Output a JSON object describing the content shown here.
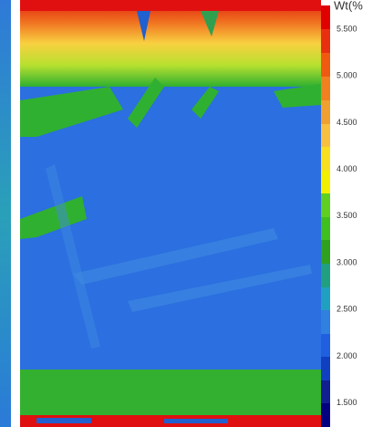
{
  "colorbar": {
    "title": "Wt(%",
    "ticks": [
      {
        "value": 5.5,
        "label": "5.500"
      },
      {
        "value": 5.0,
        "label": "5.000"
      },
      {
        "value": 4.5,
        "label": "4.500"
      },
      {
        "value": 4.0,
        "label": "4.000"
      },
      {
        "value": 3.5,
        "label": "3.500"
      },
      {
        "value": 3.0,
        "label": "3.000"
      },
      {
        "value": 2.5,
        "label": "2.500"
      },
      {
        "value": 2.0,
        "label": "2.000"
      },
      {
        "value": 1.5,
        "label": "1.500"
      }
    ]
  }
}
